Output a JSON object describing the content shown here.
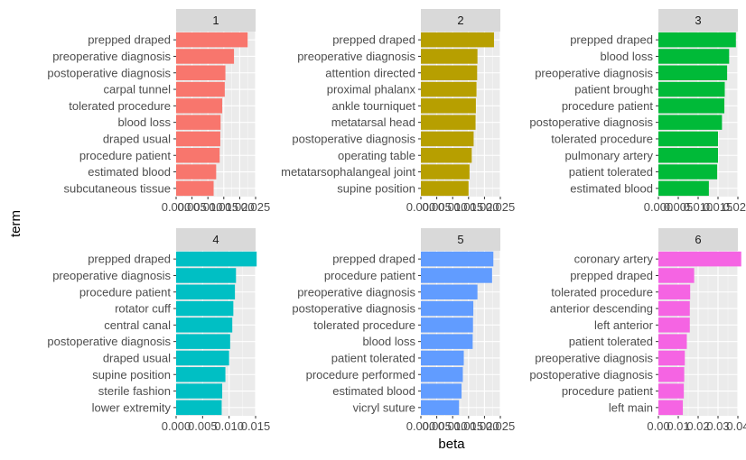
{
  "chart_data": {
    "type": "bar",
    "orientation": "horizontal",
    "xlabel": "beta",
    "ylabel": "term",
    "panels": [
      {
        "strip": "1",
        "xlim": [
          0,
          0.025
        ],
        "ticks": [
          "0.000",
          "0.005",
          "0.010",
          "0.015",
          "0.020",
          "0.025"
        ],
        "tick_values": [
          0,
          0.005,
          0.01,
          0.015,
          0.02,
          0.025
        ],
        "color": "#F8766D",
        "terms": [
          "prepped draped",
          "preoperative diagnosis",
          "postoperative diagnosis",
          "carpal tunnel",
          "tolerated procedure",
          "blood loss",
          "draped usual",
          "procedure patient",
          "estimated blood",
          "subcutaneous tissue"
        ],
        "values": [
          0.0225,
          0.0182,
          0.0155,
          0.0153,
          0.0145,
          0.014,
          0.0139,
          0.0137,
          0.0126,
          0.0118
        ]
      },
      {
        "strip": "2",
        "xlim": [
          0,
          0.025
        ],
        "ticks": [
          "0.000",
          "0.005",
          "0.010",
          "0.015",
          "0.020",
          "0.025"
        ],
        "tick_values": [
          0,
          0.005,
          0.01,
          0.015,
          0.02,
          0.025
        ],
        "color": "#B79F00",
        "terms": [
          "prepped draped",
          "preoperative diagnosis",
          "attention directed",
          "proximal phalanx",
          "ankle tourniquet",
          "metatarsal head",
          "postoperative diagnosis",
          "operating table",
          "metatarsophalangeal joint",
          "supine position"
        ],
        "values": [
          0.023,
          0.0178,
          0.0177,
          0.0175,
          0.0173,
          0.0172,
          0.0166,
          0.016,
          0.0153,
          0.015
        ]
      },
      {
        "strip": "3",
        "xlim": [
          0,
          0.02
        ],
        "ticks": [
          "0.000",
          "0.005",
          "0.010",
          "0.015",
          "0.020"
        ],
        "tick_values": [
          0,
          0.005,
          0.01,
          0.015,
          0.02
        ],
        "color": "#00BA38",
        "terms": [
          "prepped draped",
          "blood loss",
          "preoperative diagnosis",
          "patient brought",
          "procedure patient",
          "postoperative diagnosis",
          "tolerated procedure",
          "pulmonary artery",
          "patient tolerated",
          "estimated blood"
        ],
        "values": [
          0.0195,
          0.0178,
          0.0173,
          0.0167,
          0.0166,
          0.016,
          0.015,
          0.015,
          0.0148,
          0.0127
        ]
      },
      {
        "strip": "4",
        "xlim": [
          0,
          0.015
        ],
        "ticks": [
          "0.000",
          "0.005",
          "0.010",
          "0.015"
        ],
        "tick_values": [
          0,
          0.005,
          0.01,
          0.015
        ],
        "color": "#00BFC4",
        "terms": [
          "prepped draped",
          "preoperative diagnosis",
          "procedure patient",
          "rotator cuff",
          "central canal",
          "postoperative diagnosis",
          "draped usual",
          "supine position",
          "sterile fashion",
          "lower extremity"
        ],
        "values": [
          0.0152,
          0.0113,
          0.0111,
          0.0108,
          0.0106,
          0.0102,
          0.01,
          0.0093,
          0.0087,
          0.0086
        ]
      },
      {
        "strip": "5",
        "xlim": [
          0,
          0.025
        ],
        "ticks": [
          "0.000",
          "0.005",
          "0.010",
          "0.015",
          "0.020",
          "0.025"
        ],
        "tick_values": [
          0,
          0.005,
          0.01,
          0.015,
          0.02,
          0.025
        ],
        "color": "#619CFF",
        "terms": [
          "prepped draped",
          "procedure patient",
          "preoperative diagnosis",
          "postoperative diagnosis",
          "tolerated procedure",
          "blood loss",
          "patient tolerated",
          "procedure performed",
          "estimated blood",
          "vicryl suture"
        ],
        "values": [
          0.0228,
          0.0224,
          0.0178,
          0.0165,
          0.0164,
          0.0163,
          0.0135,
          0.0132,
          0.0128,
          0.012
        ]
      },
      {
        "strip": "6",
        "xlim": [
          0,
          0.04
        ],
        "ticks": [
          "0.00",
          "0.01",
          "0.02",
          "0.03",
          "0.04"
        ],
        "tick_values": [
          0,
          0.01,
          0.02,
          0.03,
          0.04
        ],
        "color": "#F564E3",
        "terms": [
          "coronary artery",
          "prepped draped",
          "tolerated procedure",
          "anterior descending",
          "left anterior",
          "patient tolerated",
          "preoperative diagnosis",
          "postoperative diagnosis",
          "procedure patient",
          "left main"
        ],
        "values": [
          0.0417,
          0.018,
          0.016,
          0.0158,
          0.0158,
          0.0143,
          0.0133,
          0.013,
          0.0128,
          0.0123
        ]
      }
    ]
  }
}
